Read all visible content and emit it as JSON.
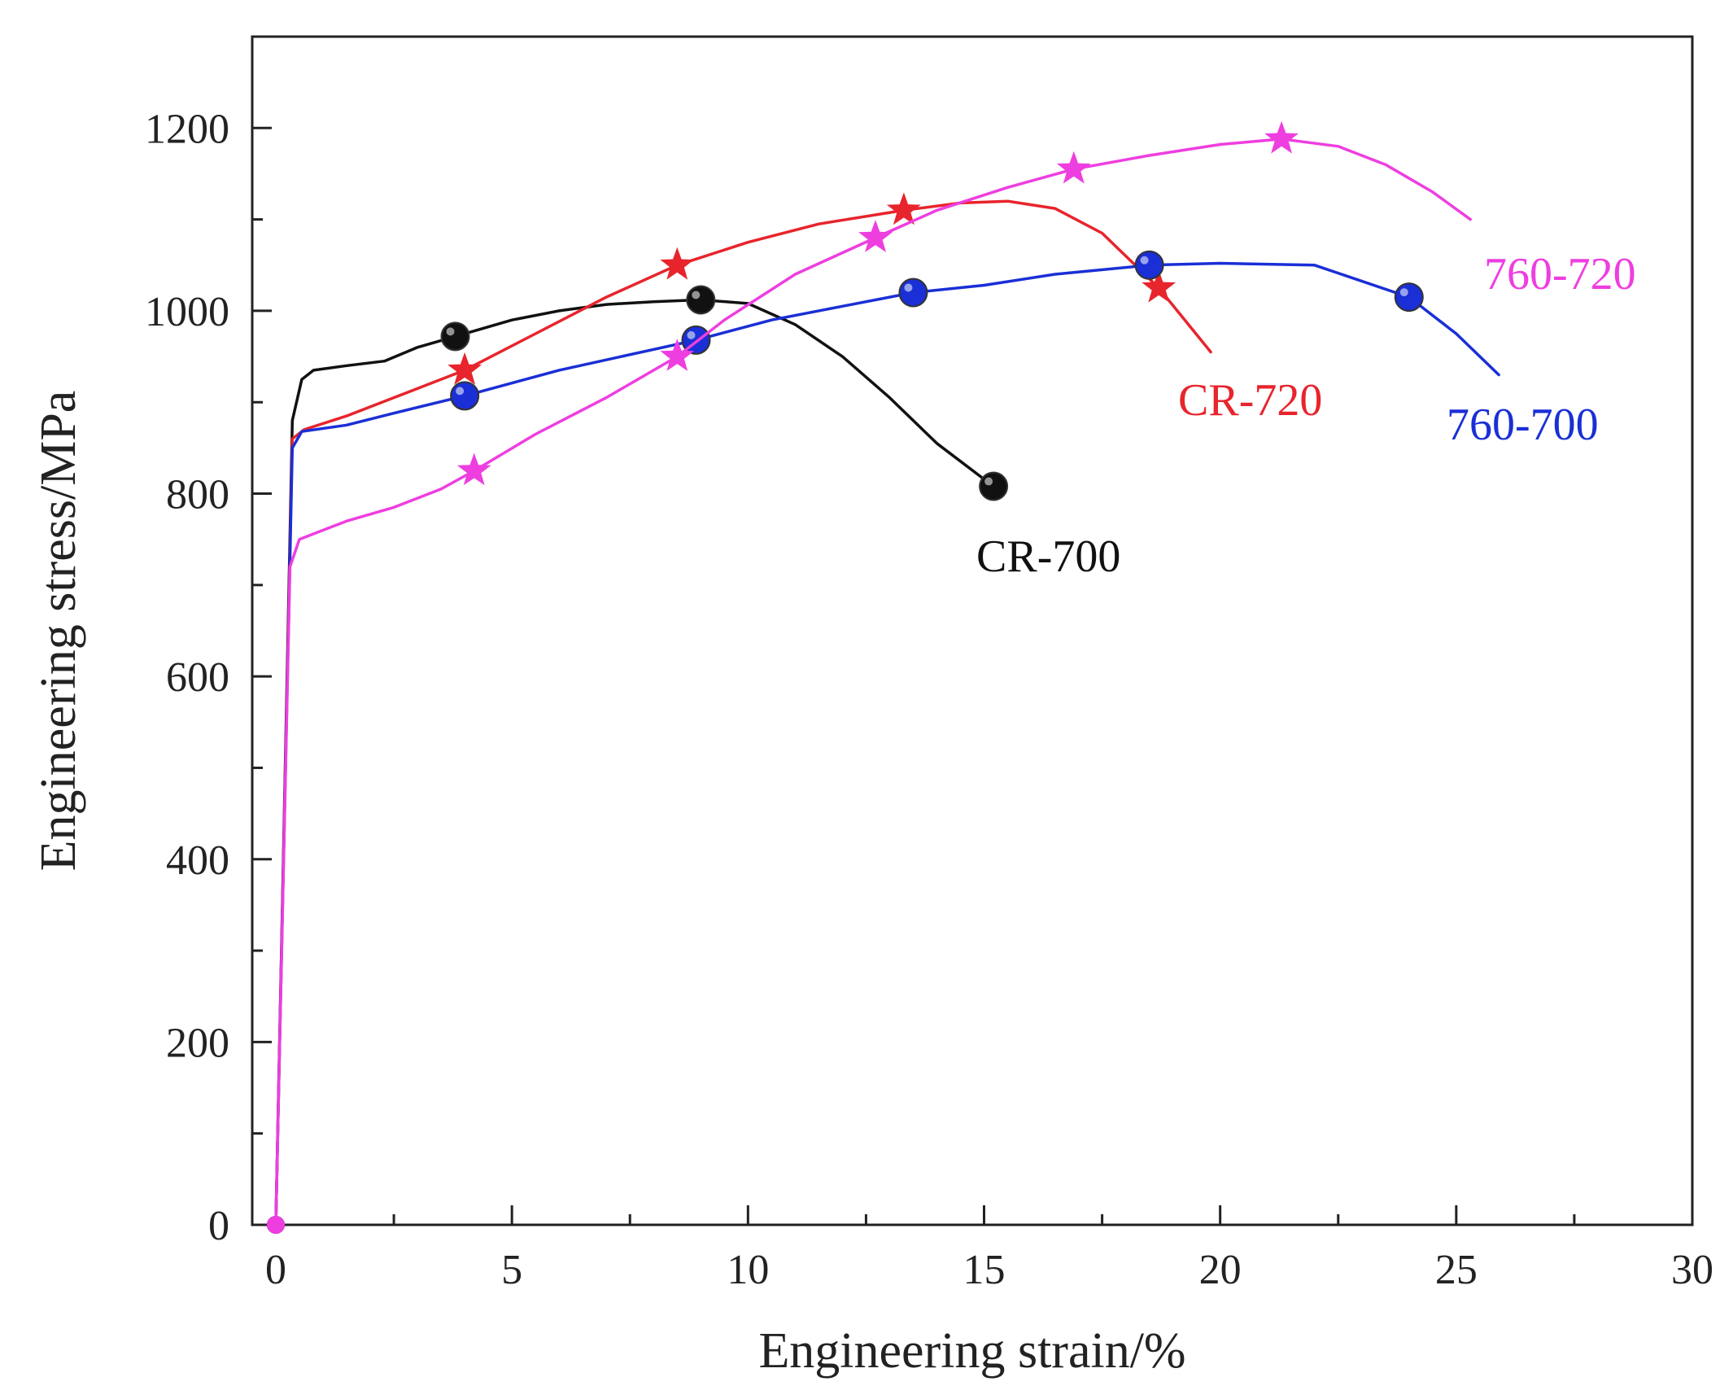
{
  "chart_data": {
    "type": "line",
    "title": "",
    "xlabel": "Engineering strain/%",
    "ylabel": "Engineering stress/MPa",
    "xlim": [
      -0.5,
      30
    ],
    "ylim": [
      0,
      1300
    ],
    "xticks": [
      0,
      5,
      10,
      15,
      20,
      25,
      30
    ],
    "yticks": [
      0,
      200,
      400,
      600,
      800,
      1000,
      1200
    ],
    "grid": false,
    "legend": "inline labels near curve ends",
    "series": [
      {
        "name": "CR-700",
        "color": "#111111",
        "marker": "circle",
        "x": [
          0,
          0.35,
          0.55,
          0.8,
          1.5,
          2.3,
          3.0,
          3.8,
          5,
          6,
          7,
          8,
          9,
          10,
          11,
          12,
          13,
          14,
          15.2
        ],
        "y": [
          0,
          880,
          925,
          935,
          940,
          945,
          960,
          972,
          990,
          1000,
          1007,
          1010,
          1012,
          1008,
          985,
          950,
          905,
          855,
          808
        ],
        "marker_x": [
          3.8,
          9.0,
          15.2
        ],
        "marker_y": [
          972,
          1012,
          808
        ]
      },
      {
        "name": "CR-720",
        "color": "#e8242c",
        "marker": "star",
        "x": [
          0,
          0.35,
          0.6,
          1.5,
          2.5,
          4.0,
          5.5,
          7.0,
          8.5,
          10,
          11.5,
          13.3,
          14.5,
          15.5,
          16.5,
          17.5,
          18.7,
          19.8
        ],
        "y": [
          0,
          860,
          870,
          885,
          905,
          935,
          975,
          1015,
          1050,
          1075,
          1095,
          1110,
          1118,
          1120,
          1112,
          1085,
          1025,
          955
        ],
        "marker_x": [
          4.0,
          8.5,
          13.3,
          18.7
        ],
        "marker_y": [
          935,
          1050,
          1110,
          1025
        ]
      },
      {
        "name": "760-700",
        "color": "#1a2fd6",
        "marker": "circle",
        "x": [
          0,
          0.35,
          0.55,
          1.5,
          2.5,
          4.0,
          6.0,
          8.9,
          10.5,
          12.0,
          13.5,
          15.0,
          16.5,
          18.5,
          20.0,
          22.0,
          24.0,
          25.0,
          25.9
        ],
        "y": [
          0,
          850,
          868,
          875,
          888,
          907,
          935,
          968,
          990,
          1005,
          1020,
          1028,
          1040,
          1050,
          1052,
          1050,
          1015,
          975,
          930
        ],
        "marker_x": [
          4.0,
          8.9,
          13.5,
          18.5,
          24.0
        ],
        "marker_y": [
          907,
          968,
          1020,
          1050,
          1015
        ]
      },
      {
        "name": "760-720",
        "color": "#ee3ee0",
        "marker": "star",
        "x": [
          0,
          0.3,
          0.5,
          1.5,
          2.5,
          3.5,
          4.2,
          5.5,
          7.0,
          8.5,
          9.5,
          11.0,
          12.7,
          14.0,
          15.5,
          16.9,
          18.5,
          20.0,
          21.3,
          22.5,
          23.5,
          24.5,
          25.3
        ],
        "y": [
          0,
          720,
          750,
          770,
          785,
          805,
          825,
          865,
          905,
          950,
          990,
          1040,
          1080,
          1110,
          1135,
          1155,
          1170,
          1182,
          1188,
          1180,
          1160,
          1130,
          1100
        ],
        "marker_x": [
          4.2,
          8.5,
          12.7,
          16.9,
          21.3
        ],
        "marker_y": [
          825,
          950,
          1080,
          1155,
          1188
        ]
      }
    ]
  }
}
